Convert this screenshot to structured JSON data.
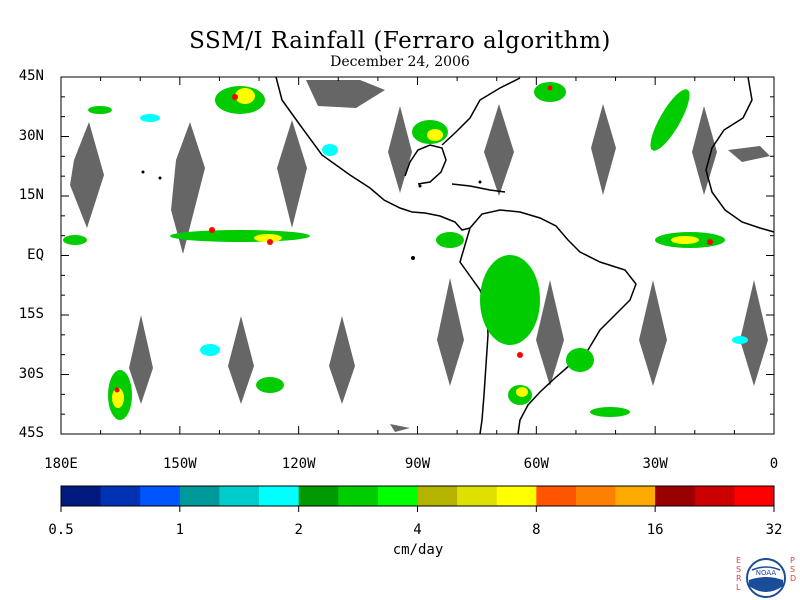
{
  "title": "SSM/I Rainfall (Ferraro algorithm)",
  "subtitle": "December 24, 2006",
  "lat_labels": [
    "45N",
    "30N",
    "15N",
    "EQ",
    "15S",
    "30S",
    "45S"
  ],
  "lat_values": [
    45,
    30,
    15,
    0,
    -15,
    -30,
    -45
  ],
  "lon_labels": [
    "180E",
    "150W",
    "120W",
    "90W",
    "60W",
    "30W",
    "0"
  ],
  "lon_values": [
    -180,
    -150,
    -120,
    -90,
    -60,
    -30,
    0
  ],
  "colorbar": {
    "units": "cm/day",
    "tick_labels": [
      "0.5",
      "1",
      "2",
      "4",
      "8",
      "16",
      "32"
    ],
    "colors": [
      "#001a80",
      "#0033b3",
      "#0055ff",
      "#009999",
      "#00cccc",
      "#00ffff",
      "#009900",
      "#00cc00",
      "#00ff00",
      "#b3b300",
      "#e0e000",
      "#ffff00",
      "#ff5500",
      "#ff8000",
      "#ffaa00",
      "#990000",
      "#cc0000",
      "#ff0000"
    ]
  },
  "map_extent": {
    "lon": [
      -180,
      0
    ],
    "lat": [
      -45,
      45
    ]
  },
  "logo": {
    "left_letters": [
      "E",
      "S",
      "R",
      "L"
    ],
    "right_letters": [
      "P",
      "S",
      "D"
    ],
    "emblem_text": "NOAA"
  }
}
